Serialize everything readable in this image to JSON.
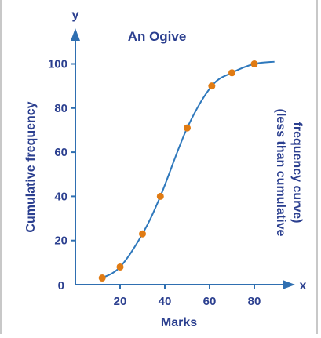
{
  "colors": {
    "text": "#2b3f8f",
    "axis": "#2f6fb1",
    "curve": "#2e78bc",
    "point": "#e07b13",
    "border": "#c8c8c8"
  },
  "chart_data": {
    "type": "line",
    "title": "An Ogive",
    "xlabel": "Marks",
    "ylabel": "Cumulative frequency",
    "annotation_lines": [
      "(less than cumulative",
      "frequency curve)"
    ],
    "x_axis_letter": "x",
    "y_axis_letter": "y",
    "origin_label": "0",
    "xlim": [
      0,
      90
    ],
    "ylim": [
      0,
      110
    ],
    "x_ticks": [
      20,
      40,
      60,
      80
    ],
    "y_ticks": [
      0,
      20,
      40,
      60,
      80,
      100
    ],
    "x_tick_labels": [
      "20",
      "40",
      "60",
      "80"
    ],
    "y_tick_labels": [
      "0",
      "20",
      "40",
      "60",
      "80",
      "100"
    ],
    "grid": false,
    "points": [
      {
        "x": 12,
        "y": 3
      },
      {
        "x": 20,
        "y": 8
      },
      {
        "x": 30,
        "y": 23
      },
      {
        "x": 38,
        "y": 40
      },
      {
        "x": 50,
        "y": 71
      },
      {
        "x": 61,
        "y": 90
      },
      {
        "x": 70,
        "y": 96
      },
      {
        "x": 80,
        "y": 100
      }
    ],
    "curve_end": {
      "x": 89,
      "y": 101
    }
  }
}
